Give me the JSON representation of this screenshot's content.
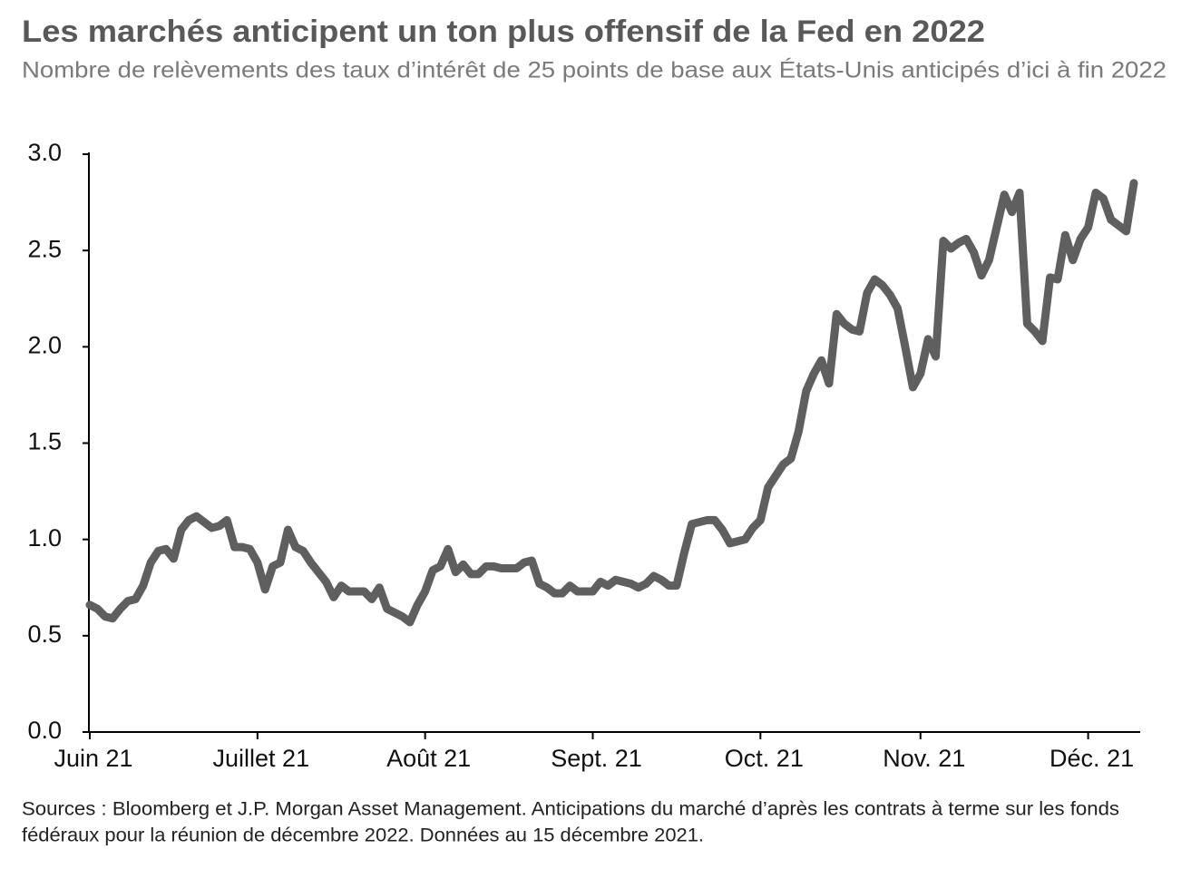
{
  "chart_data": {
    "type": "line",
    "title": "Les marchés anticipent un ton plus offensif de la Fed en 2022",
    "subtitle": "Nombre de relèvements des taux d’intérêt de 25 points de base aux États-Unis anticipés d’ici à fin 2022",
    "note": [
      "Sources : Bloomberg et J.P. Morgan Asset Management. Anticipations du marché d’après les contrats à terme sur les fonds",
      "fédéraux pour la réunion de décembre 2022. Données au 15 décembre 2021."
    ],
    "categories": [
      "Juin 21",
      null,
      null,
      null,
      null,
      null,
      null,
      null,
      null,
      null,
      null,
      null,
      null,
      null,
      null,
      null,
      null,
      null,
      null,
      null,
      null,
      null,
      "Juillet 21",
      null,
      null,
      null,
      null,
      null,
      null,
      null,
      null,
      null,
      null,
      null,
      null,
      null,
      null,
      null,
      null,
      null,
      null,
      null,
      null,
      null,
      "Août 21",
      null,
      null,
      null,
      null,
      null,
      null,
      null,
      null,
      null,
      null,
      null,
      null,
      null,
      null,
      null,
      null,
      null,
      null,
      null,
      null,
      null,
      "Sept. 21",
      null,
      null,
      null,
      null,
      null,
      null,
      null,
      null,
      null,
      null,
      null,
      null,
      null,
      null,
      null,
      null,
      null,
      null,
      null,
      null,
      null,
      "Oct. 21",
      null,
      null,
      null,
      null,
      null,
      null,
      null,
      null,
      null,
      null,
      null,
      null,
      null,
      null,
      null,
      null,
      null,
      null,
      null,
      null,
      "Nov. 21",
      null,
      null,
      null,
      null,
      null,
      null,
      null,
      null,
      null,
      null,
      null,
      null,
      null,
      null,
      null,
      null,
      null,
      null,
      null,
      null,
      null,
      "Déc. 21",
      null,
      null,
      null,
      null,
      null,
      null
    ],
    "values": [
      0.66,
      0.64,
      0.6,
      0.59,
      0.64,
      0.68,
      0.69,
      0.76,
      0.88,
      0.94,
      0.95,
      0.9,
      1.05,
      1.1,
      1.12,
      1.09,
      1.06,
      1.07,
      1.1,
      0.96,
      0.96,
      0.95,
      0.88,
      0.74,
      0.86,
      0.88,
      1.05,
      0.96,
      0.94,
      0.88,
      0.83,
      0.78,
      0.7,
      0.76,
      0.73,
      0.73,
      0.73,
      0.69,
      0.75,
      0.64,
      0.62,
      0.6,
      0.57,
      0.66,
      0.73,
      0.84,
      0.86,
      0.95,
      0.83,
      0.87,
      0.82,
      0.82,
      0.86,
      0.86,
      0.85,
      0.85,
      0.85,
      0.88,
      0.89,
      0.77,
      0.75,
      0.72,
      0.72,
      0.76,
      0.73,
      0.73,
      0.73,
      0.78,
      0.76,
      0.79,
      0.78,
      0.77,
      0.75,
      0.77,
      0.81,
      0.79,
      0.76,
      0.76,
      0.93,
      1.08,
      1.09,
      1.1,
      1.1,
      1.05,
      0.98,
      0.99,
      1.0,
      1.06,
      1.1,
      1.27,
      1.33,
      1.39,
      1.42,
      1.56,
      1.77,
      1.86,
      1.93,
      1.81,
      2.17,
      2.12,
      2.09,
      2.08,
      2.28,
      2.35,
      2.32,
      2.27,
      2.2,
      2.0,
      1.79,
      1.86,
      2.04,
      1.95,
      2.55,
      2.51,
      2.54,
      2.56,
      2.49,
      2.37,
      2.45,
      2.62,
      2.79,
      2.7,
      2.8,
      2.12,
      2.08,
      2.03,
      2.36,
      2.35,
      2.58,
      2.45,
      2.56,
      2.62,
      2.8,
      2.77,
      2.66,
      2.63,
      2.6,
      2.85
    ],
    "color": "#5f5f5f",
    "ylim": [
      0,
      3
    ],
    "yticks": [
      {
        "value": 0,
        "label": "0.0"
      },
      0.5,
      {
        "value": 1,
        "label": "1.0"
      },
      1.5,
      {
        "value": 2,
        "label": "2.0"
      },
      2.5,
      {
        "value": 3,
        "label": "3.0"
      }
    ],
    "grid": false
  }
}
